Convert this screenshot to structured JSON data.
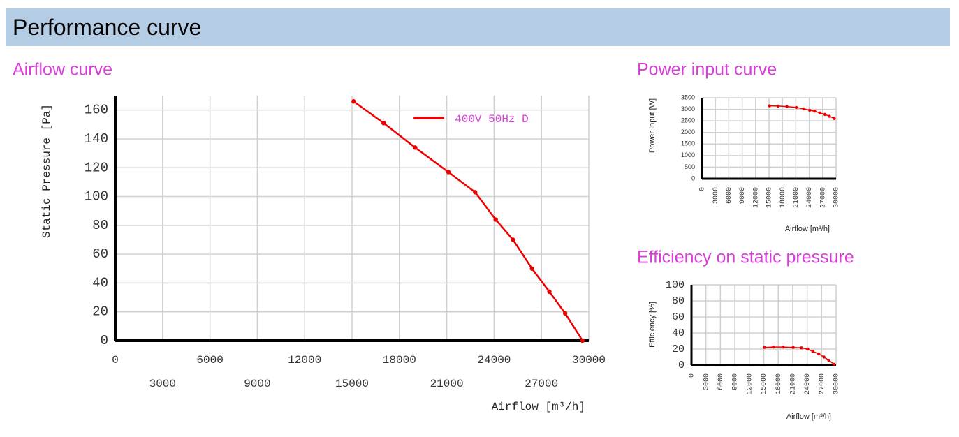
{
  "header": {
    "title": "Performance curve"
  },
  "chart_data": [
    {
      "type": "line",
      "title": "Airflow curve",
      "x_label": "Airflow [m³/h]",
      "y_label": "Static Pressure [Pa]",
      "x": [
        15100,
        17000,
        19000,
        21100,
        22800,
        24100,
        25200,
        26400,
        27500,
        28500,
        29600
      ],
      "series": [
        {
          "name": "400V 50Hz D",
          "color": "#ee0000",
          "values": [
            166,
            151,
            134,
            117,
            103,
            84,
            70,
            50,
            34,
            19,
            0
          ]
        }
      ],
      "xlim": [
        0,
        30000
      ],
      "ylim": [
        0,
        170
      ],
      "xticks": [
        0,
        3000,
        6000,
        9000,
        12000,
        15000,
        18000,
        21000,
        24000,
        27000,
        30000
      ],
      "yticks": [
        0,
        20,
        40,
        60,
        80,
        100,
        120,
        140,
        160
      ],
      "grid": true
    },
    {
      "type": "line",
      "title": "Power input curve",
      "x_label": "Airflow [m³/h]",
      "y_label": "Power Input [W]",
      "x": [
        15100,
        17000,
        19000,
        21100,
        22800,
        24100,
        25200,
        26400,
        27500,
        28500,
        29600
      ],
      "series": [
        {
          "color": "#ee0000",
          "values": [
            3150,
            3140,
            3120,
            3080,
            3020,
            2960,
            2920,
            2840,
            2780,
            2700,
            2600
          ]
        }
      ],
      "xlim": [
        0,
        30000
      ],
      "ylim": [
        0,
        3500
      ],
      "xticks": [
        0,
        3000,
        6000,
        9000,
        12000,
        15000,
        18000,
        21000,
        24000,
        27000,
        30000
      ],
      "yticks": [
        0,
        500,
        1000,
        1500,
        2000,
        2500,
        3000,
        3500
      ],
      "grid": true
    },
    {
      "type": "line",
      "title": "Efficiency on static pressure",
      "x_label": "Airflow [m³/h]",
      "y_label": "Efficiency [%]",
      "x": [
        15100,
        17000,
        19000,
        21100,
        22800,
        24100,
        25200,
        26400,
        27500,
        28500,
        29600
      ],
      "series": [
        {
          "color": "#ee0000",
          "values": [
            22,
            22.5,
            22.5,
            22,
            21.5,
            20,
            17,
            14,
            10,
            6,
            1
          ]
        }
      ],
      "xlim": [
        0,
        30000
      ],
      "ylim": [
        0,
        100
      ],
      "xticks": [
        0,
        3000,
        6000,
        9000,
        12000,
        15000,
        18000,
        21000,
        24000,
        27000,
        30000
      ],
      "yticks": [
        0,
        20,
        40,
        60,
        80,
        100
      ],
      "grid": true
    }
  ]
}
